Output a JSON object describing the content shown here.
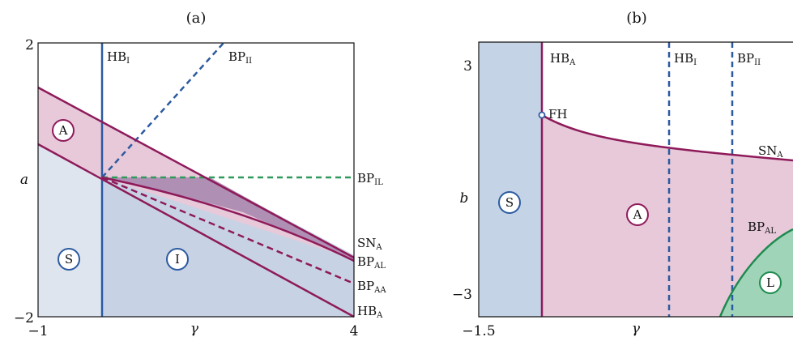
{
  "colors": {
    "stable_fill": "#c5d3e6",
    "stable_fill_light": "#dfe5ef",
    "insulating_fill": "#c7d3e4",
    "antiferro_fill": "#e7c9d9",
    "antiferro_overlap": "#b08fb4",
    "limit_fill": "#9fd4b8",
    "purple": "#8e1a5a",
    "blue": "#2c5aa0",
    "green": "#1e8a4e",
    "green_dash": "#2f9a5a"
  },
  "chart_data": [
    {
      "type": "area",
      "panel": "(a)",
      "title": "(a)",
      "xlabel": "γ",
      "ylabel": "a",
      "xlim": [
        -1,
        4
      ],
      "ylim": [
        -2,
        2
      ],
      "xticks": [
        "−1",
        "4"
      ],
      "yticks": [
        "2",
        "−2"
      ],
      "lines": [
        {
          "name": "HB_I",
          "label": "HB",
          "sub": "I",
          "style": "solid",
          "color": "blue",
          "x": [
            0,
            0
          ],
          "y": [
            -2,
            2
          ]
        },
        {
          "name": "BP_II",
          "label": "BP",
          "sub": "II",
          "style": "dashed",
          "color": "blue",
          "x": [
            0,
            2
          ],
          "y": [
            0,
            2
          ]
        },
        {
          "name": "BP_IL",
          "label": "BP",
          "sub": "IL",
          "style": "dashed",
          "color": "green",
          "x": [
            0,
            4
          ],
          "y": [
            0,
            0
          ]
        },
        {
          "name": "SN_A",
          "label": "SN",
          "sub": "A",
          "style": "solid",
          "color": "purple",
          "x": [
            -1,
            0,
            4
          ],
          "y": [
            1.33,
            0.83,
            -1.15
          ]
        },
        {
          "name": "BP_AL",
          "label": "BP",
          "sub": "AL",
          "style": "solid",
          "color": "purple",
          "x": [
            0,
            1,
            2,
            3,
            4
          ],
          "y": [
            0,
            -0.15,
            -0.34,
            -0.72,
            -1.2
          ]
        },
        {
          "name": "BP_AA",
          "label": "BP",
          "sub": "AA",
          "style": "dashed",
          "color": "purple",
          "x": [
            0,
            4
          ],
          "y": [
            0,
            -1.55
          ]
        },
        {
          "name": "HB_A",
          "label": "HB",
          "sub": "A",
          "style": "solid",
          "color": "purple",
          "x": [
            -1,
            0,
            4
          ],
          "y": [
            0.56,
            0,
            -2
          ]
        }
      ],
      "regions": [
        "A",
        "S",
        "I"
      ]
    },
    {
      "type": "area",
      "panel": "(b)",
      "title": "(b)",
      "xlabel": "γ",
      "ylabel": "b",
      "xlim": [
        -1.5,
        null
      ],
      "ylim": [
        -3.5,
        3.5
      ],
      "xticks": [
        "−1.5"
      ],
      "yticks": [
        "3",
        "−3"
      ],
      "lines": [
        {
          "name": "HB_A",
          "label": "HB",
          "sub": "A",
          "style": "solid",
          "color": "purple"
        },
        {
          "name": "HB_I",
          "label": "HB",
          "sub": "I",
          "style": "dashed",
          "color": "blue"
        },
        {
          "name": "BP_II",
          "label": "BP",
          "sub": "II",
          "style": "dashed",
          "color": "blue"
        },
        {
          "name": "SN_A",
          "label": "SN",
          "sub": "A",
          "style": "solid",
          "color": "purple"
        },
        {
          "name": "BP_AL",
          "label": "BP",
          "sub": "AL",
          "style": "solid",
          "color": "green"
        }
      ],
      "points": [
        {
          "name": "FH",
          "label": "FH"
        }
      ],
      "regions": [
        "S",
        "A",
        "L"
      ]
    }
  ]
}
